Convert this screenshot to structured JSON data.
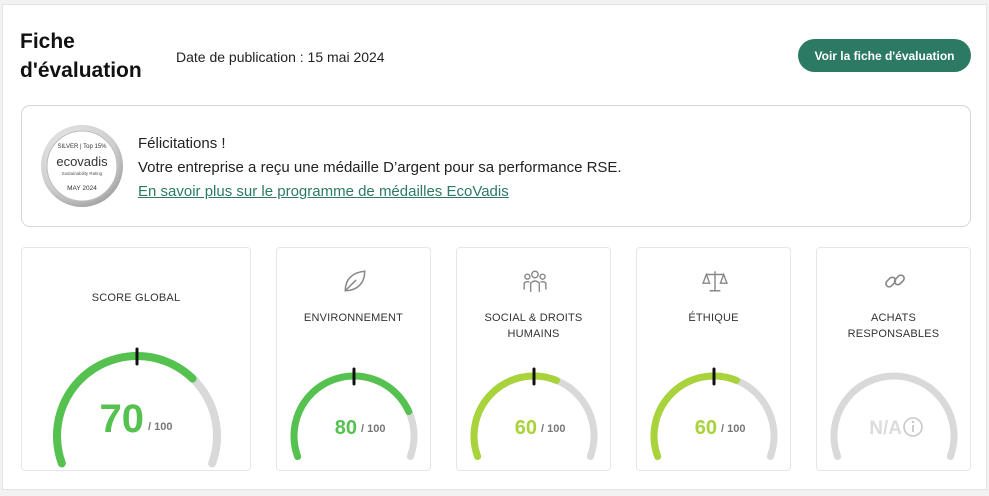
{
  "header": {
    "title": "Fiche d'évaluation",
    "publication_date": "Date de publication : 15 mai 2024",
    "cta_label": "Voir la fiche d'évaluation"
  },
  "medal_banner": {
    "medal_icon": "ecovadis-silver-medal",
    "congrats": "Félicitations !",
    "message": "Votre entreprise a reçu une médaille D’argent pour sa performance RSE.",
    "link_label": "En savoir plus sur le programme de médailles EcoVadis",
    "medal_lines": {
      "top": "SILVER | Top 15%",
      "brand": "ecovadis",
      "sub": "Sustainability Rating",
      "date": "MAY 2024"
    }
  },
  "scores": [
    {
      "label": "SCORE GLOBAL",
      "icon": "none",
      "value": "70",
      "max": "/ 100",
      "fraction": 0.7,
      "color": "#55c24f"
    },
    {
      "label": "ENVIRONNEMENT",
      "icon": "leaf-icon",
      "value": "80",
      "max": "/ 100",
      "fraction": 0.8,
      "color": "#55c24f"
    },
    {
      "label": "SOCIAL & DROITS HUMAINS",
      "icon": "people-icon",
      "value": "60",
      "max": "/ 100",
      "fraction": 0.6,
      "color": "#a8d33b"
    },
    {
      "label": "ÉTHIQUE",
      "icon": "scales-icon",
      "value": "60",
      "max": "/ 100",
      "fraction": 0.6,
      "color": "#a8d33b"
    },
    {
      "label": "ACHATS RESPONSABLES",
      "icon": "link-icon",
      "value": "N/A",
      "max": "",
      "fraction": 0,
      "color": "#d9d9d9"
    }
  ]
}
